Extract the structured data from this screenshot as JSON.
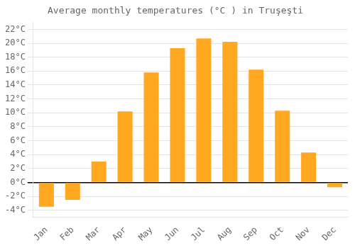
{
  "chart_data": {
    "type": "bar",
    "title": "Average monthly temperatures (°C ) in Truşeşti",
    "categories": [
      "Jan",
      "Feb",
      "Mar",
      "Apr",
      "May",
      "Jun",
      "Jul",
      "Aug",
      "Sep",
      "Oct",
      "Nov",
      "Dec"
    ],
    "values": [
      -3.5,
      -2.5,
      3.0,
      10.2,
      15.8,
      19.3,
      20.7,
      20.2,
      16.2,
      10.3,
      4.3,
      -0.7
    ],
    "color": "#FFA820",
    "ylim": [
      -5,
      23
    ],
    "yticks": [
      {
        "value": -4,
        "label": "-4°C"
      },
      {
        "value": -2,
        "label": "-2°C"
      },
      {
        "value": 0,
        "label": "0°C"
      },
      {
        "value": 2,
        "label": "2°C"
      },
      {
        "value": 4,
        "label": "4°C"
      },
      {
        "value": 6,
        "label": "6°C"
      },
      {
        "value": 8,
        "label": "8°C"
      },
      {
        "value": 10,
        "label": "10°C"
      },
      {
        "value": 12,
        "label": "12°C"
      },
      {
        "value": 14,
        "label": "14°C"
      },
      {
        "value": 16,
        "label": "16°C"
      },
      {
        "value": 18,
        "label": "18°C"
      },
      {
        "value": 20,
        "label": "20°C"
      },
      {
        "value": 22,
        "label": "22°C"
      }
    ],
    "grid": true
  }
}
